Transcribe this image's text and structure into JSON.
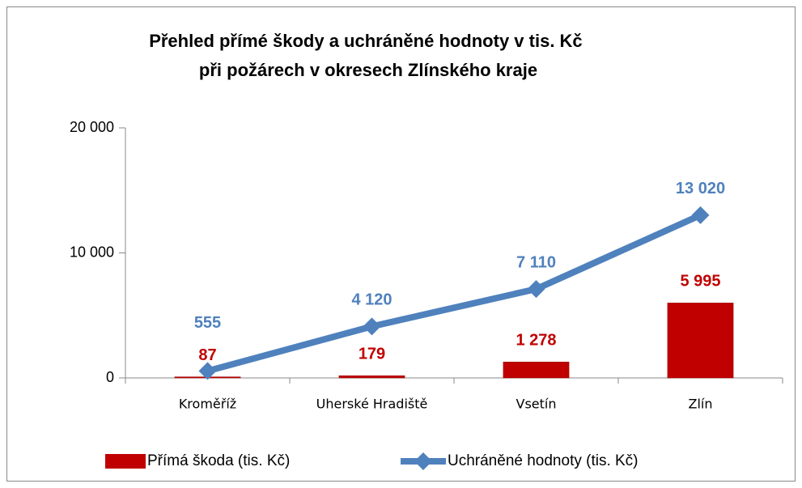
{
  "chart_data": {
    "type": "combo",
    "title": [
      "Přehled přímé škody a uchráněné hodnoty v tis. Kč",
      "při požárech v okresech Zlínského kraje"
    ],
    "categories": [
      "Kroměříž",
      "Uherské Hradiště",
      "Vsetín",
      "Zlín"
    ],
    "series": [
      {
        "name": "Přímá škoda (tis. Kč)",
        "type": "bar",
        "color": "#c00000",
        "values": [
          87,
          179,
          1278,
          5995
        ],
        "value_labels": [
          "87",
          "179",
          "1 278",
          "5 995"
        ]
      },
      {
        "name": "Uchráněné hodnoty (tis. Kč)",
        "type": "line",
        "color": "#4f81bd",
        "values": [
          555,
          4120,
          7110,
          13020
        ],
        "value_labels": [
          "555",
          "4 120",
          "7 110",
          "13 020"
        ]
      }
    ],
    "ylim": [
      0,
      20000
    ],
    "yticks": [
      0,
      {
        "value": 10000,
        "label": "10 000"
      },
      {
        "value": 20000,
        "label": "20 000"
      }
    ],
    "legend": "bottom"
  }
}
